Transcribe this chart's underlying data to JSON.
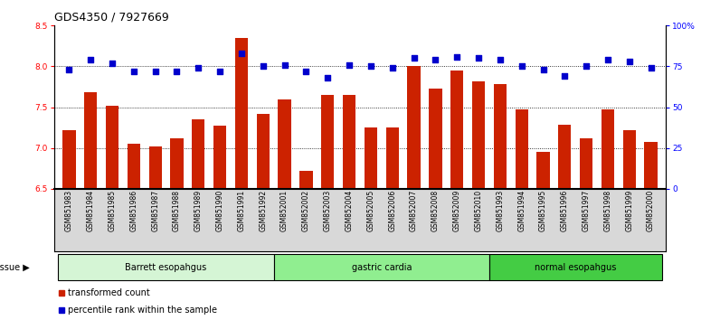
{
  "title": "GDS4350 / 7927669",
  "categories": [
    "GSM851983",
    "GSM851984",
    "GSM851985",
    "GSM851986",
    "GSM851987",
    "GSM851988",
    "GSM851989",
    "GSM851990",
    "GSM851991",
    "GSM851992",
    "GSM852001",
    "GSM852002",
    "GSM852003",
    "GSM852004",
    "GSM852005",
    "GSM852006",
    "GSM852007",
    "GSM852008",
    "GSM852009",
    "GSM852010",
    "GSM851993",
    "GSM851994",
    "GSM851995",
    "GSM851996",
    "GSM851997",
    "GSM851998",
    "GSM851999",
    "GSM852000"
  ],
  "bar_values": [
    7.22,
    7.68,
    7.52,
    7.05,
    7.02,
    7.12,
    7.35,
    7.27,
    8.35,
    7.42,
    7.6,
    6.72,
    7.65,
    7.65,
    7.25,
    7.25,
    8.0,
    7.73,
    7.95,
    7.82,
    7.78,
    7.47,
    6.95,
    7.28,
    7.12,
    7.47,
    7.22,
    7.08
  ],
  "percentile_values": [
    73,
    79,
    77,
    72,
    72,
    72,
    74,
    72,
    83,
    75,
    76,
    72,
    68,
    76,
    75,
    74,
    80,
    79,
    81,
    80,
    79,
    75,
    73,
    69,
    75,
    79,
    78,
    74
  ],
  "groups": [
    {
      "label": "Barrett esopahgus",
      "start": 0,
      "end": 9,
      "color": "#d5f5d5"
    },
    {
      "label": "gastric cardia",
      "start": 10,
      "end": 19,
      "color": "#90ee90"
    },
    {
      "label": "normal esopahgus",
      "start": 20,
      "end": 27,
      "color": "#44cc44"
    }
  ],
  "bar_color": "#cc2200",
  "dot_color": "#0000cc",
  "ylim_left": [
    6.5,
    8.5
  ],
  "ylim_right": [
    0,
    100
  ],
  "yticks_left": [
    6.5,
    7.0,
    7.5,
    8.0,
    8.5
  ],
  "yticks_right": [
    0,
    25,
    50,
    75,
    100
  ],
  "ytick_labels_right": [
    "0",
    "25",
    "50",
    "75",
    "100%"
  ],
  "grid_values": [
    7.0,
    7.5,
    8.0
  ],
  "legend_items": [
    {
      "label": "transformed count",
      "color": "#cc2200"
    },
    {
      "label": "percentile rank within the sample",
      "color": "#0000cc"
    }
  ],
  "xtick_bg_color": "#d8d8d8",
  "title_fontsize": 9,
  "tick_fontsize": 6.5,
  "xtick_fontsize": 5.5,
  "tissue_fontsize": 7,
  "legend_fontsize": 7
}
